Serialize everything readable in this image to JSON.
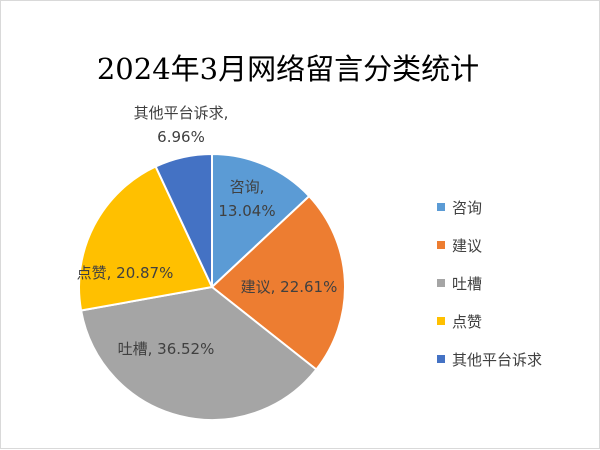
{
  "chart_data": {
    "type": "pie",
    "title": "2024年3月网络留言分类统计",
    "categories": [
      "咨询",
      "建议",
      "吐槽",
      "点赞",
      "其他平台诉求"
    ],
    "values": [
      13.04,
      22.61,
      36.52,
      20.87,
      6.96
    ],
    "unit": "%",
    "colors": [
      "#5b9bd5",
      "#ed7d31",
      "#a5a5a5",
      "#ffc000",
      "#4472c4"
    ],
    "data_labels": [
      {
        "category": "咨询",
        "percent": "13.04%"
      },
      {
        "category": "建议",
        "percent": "22.61%"
      },
      {
        "category": "吐槽",
        "percent": "36.52%"
      },
      {
        "category": "点赞",
        "percent": "20.87%"
      },
      {
        "category": "其他平台诉求",
        "percent": "6.96%"
      }
    ],
    "legend_position": "right"
  }
}
